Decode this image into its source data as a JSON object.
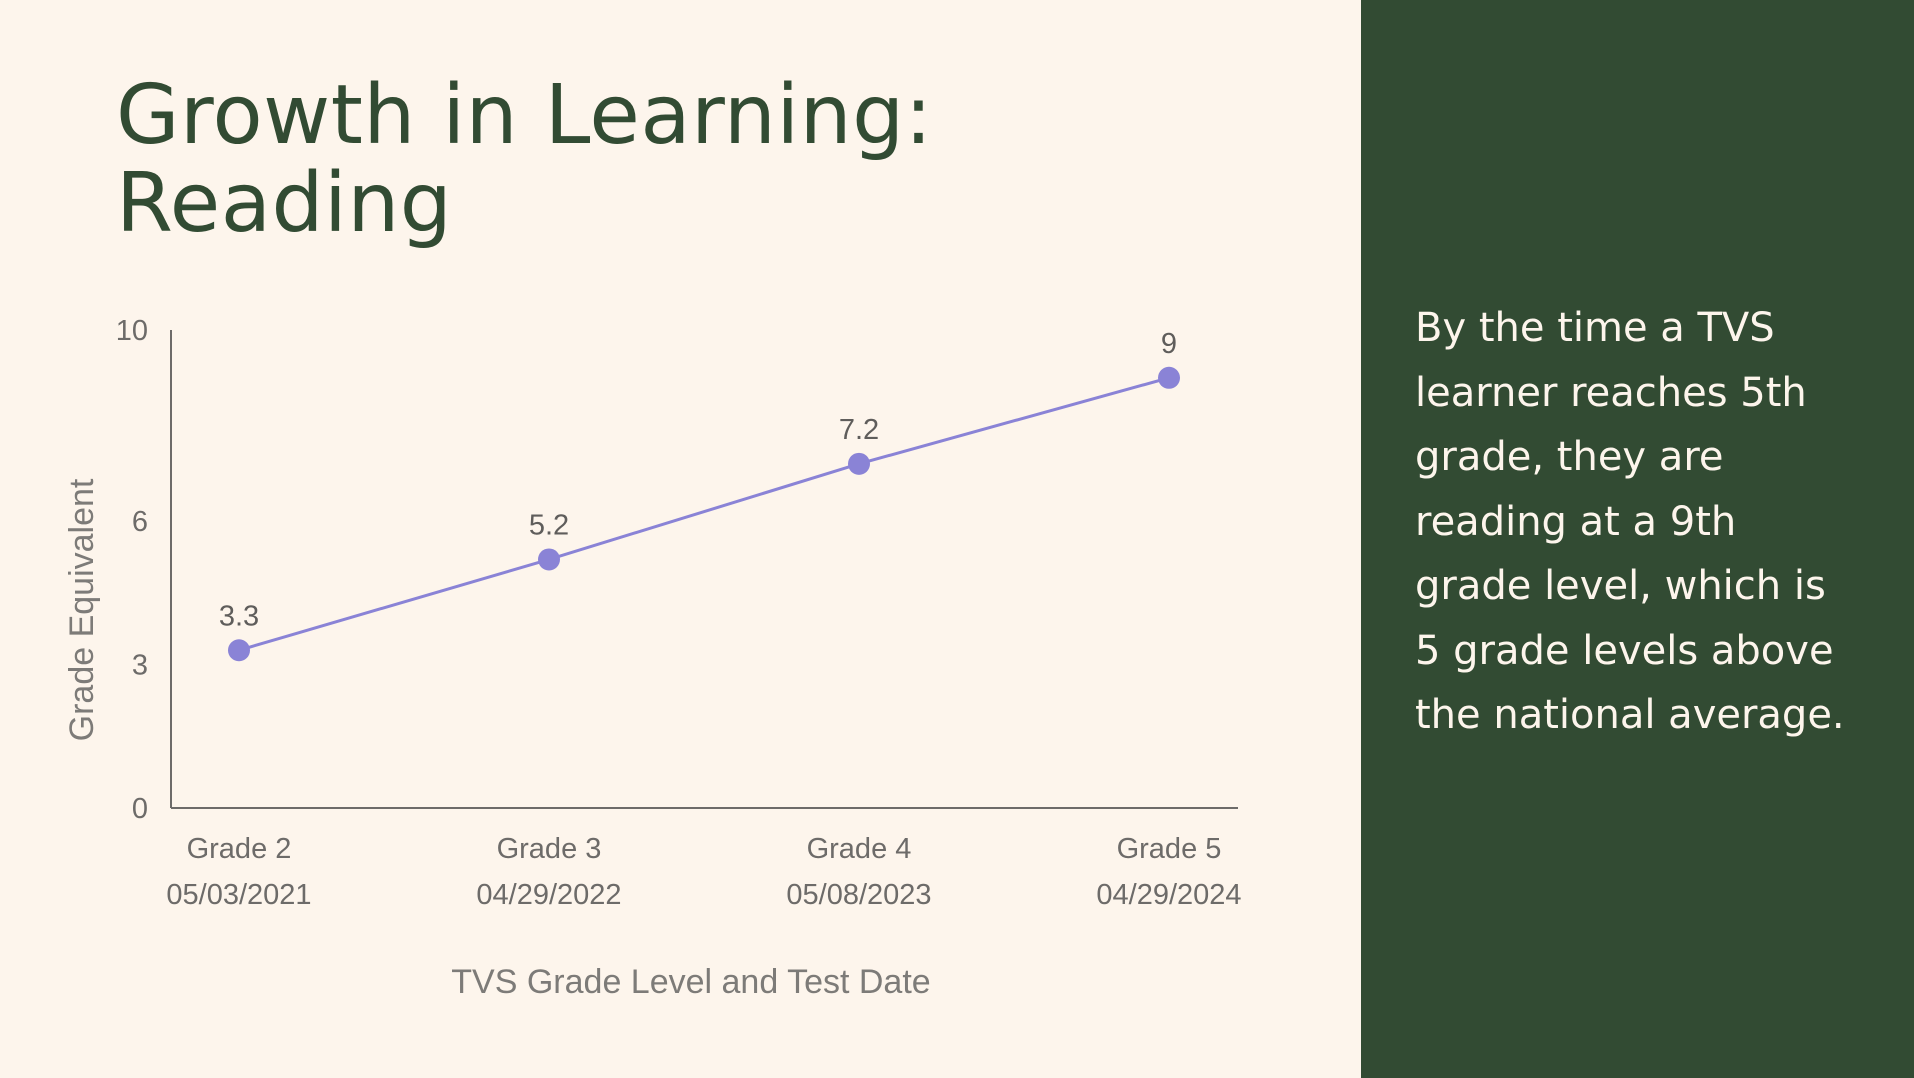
{
  "slide": {
    "title_lines": [
      "Growth in Learning:",
      "Reading"
    ],
    "callout_lines": [
      "By the time a TVS",
      "learner reaches 5th",
      "grade, they are",
      "reading at a 9th",
      "grade level, which is",
      "5 grade levels above",
      "the national average."
    ]
  },
  "colors": {
    "background": "#fdf5ec",
    "panel": "#324b33",
    "title": "#324b33",
    "series": "#8a83d6",
    "axis": "#6d6b69"
  },
  "chart_data": {
    "type": "line",
    "categories": [
      [
        "Grade 2",
        "05/03/2021"
      ],
      [
        "Grade 3",
        "04/29/2022"
      ],
      [
        "Grade 4",
        "05/08/2023"
      ],
      [
        "Grade 5",
        "04/29/2024"
      ]
    ],
    "series": [
      {
        "values": [
          3.3,
          5.2,
          7.2,
          9
        ],
        "data_labels": [
          "3.3",
          "5.2",
          "7.2",
          "9"
        ]
      }
    ],
    "xlabel": "TVS Grade Level and Test Date",
    "ylabel": "Grade Equivalent",
    "ylim": [
      0,
      10
    ],
    "yticks": [
      0,
      3,
      6,
      10
    ],
    "grid": false,
    "legend": "none"
  }
}
